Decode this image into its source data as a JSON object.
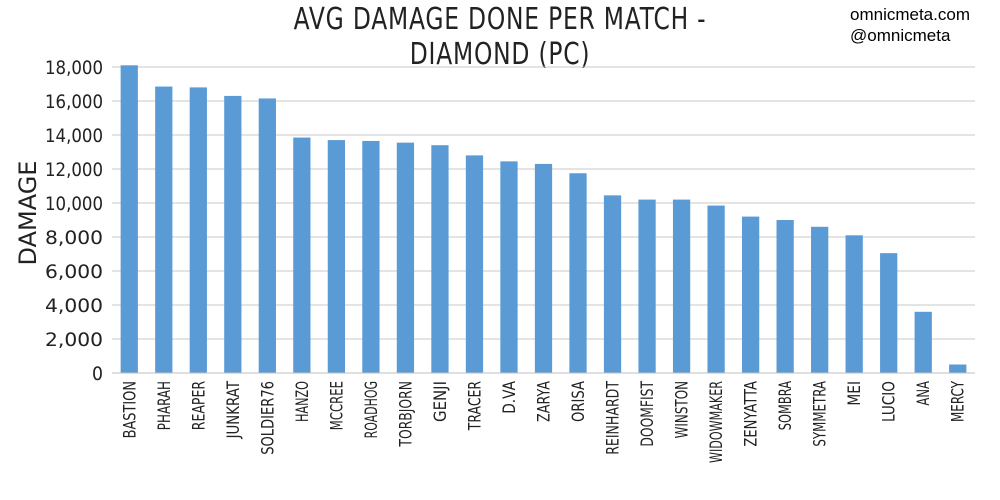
{
  "watermark": {
    "site": "omnicmeta.com",
    "handle": "@omnicmeta"
  },
  "chart_data": {
    "type": "bar",
    "title": "AVG DAMAGE DONE PER MATCH - DIAMOND (PC)",
    "xlabel": "",
    "ylabel": "DAMAGE",
    "ylim": [
      0,
      18000
    ],
    "yticks": [
      0,
      2000,
      4000,
      6000,
      8000,
      10000,
      12000,
      14000,
      16000,
      18000
    ],
    "ytick_labels": [
      "0",
      "2,000",
      "4,000",
      "6,000",
      "8,000",
      "10,000",
      "12,000",
      "14,000",
      "16,000",
      "18,000"
    ],
    "grid": true,
    "bar_color": "#5b9bd5",
    "categories": [
      "BASTION",
      "PHARAH",
      "REAPER",
      "JUNKRAT",
      "SOLDIER76",
      "HANZO",
      "MCCREE",
      "ROADHOG",
      "TORBJORN",
      "GENJI",
      "TRACER",
      "D.VA",
      "ZARYA",
      "ORISA",
      "REINHARDT",
      "DOOMFIST",
      "WINSTON",
      "WIDOWMAKER",
      "ZENYATTA",
      "SOMBRA",
      "SYMMETRA",
      "MEI",
      "LUCIO",
      "ANA",
      "MERCY"
    ],
    "values": [
      18100,
      16850,
      16800,
      16300,
      16150,
      13850,
      13700,
      13650,
      13550,
      13400,
      12800,
      12450,
      12300,
      11750,
      10450,
      10200,
      10200,
      9850,
      9200,
      9000,
      8600,
      8100,
      7050,
      3600,
      500
    ]
  }
}
